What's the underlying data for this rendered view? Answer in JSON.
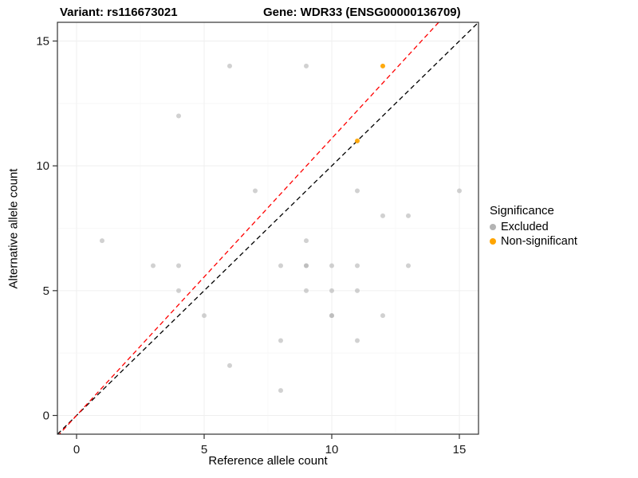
{
  "chart_data": {
    "type": "scatter",
    "title_left": "Variant: rs116673021",
    "title_right": "Gene: WDR33 (ENSG00000136709)",
    "xlabel": "Reference allele count",
    "ylabel": "Alternative allele count",
    "xlim": [
      -0.75,
      15.75
    ],
    "ylim": [
      -0.75,
      15.75
    ],
    "xticks": [
      0,
      5,
      10,
      15
    ],
    "yticks": [
      0,
      5,
      10,
      15
    ],
    "xminor": [
      2.5,
      7.5,
      12.5
    ],
    "yminor": [
      2.5,
      7.5,
      12.5
    ],
    "grid": true,
    "colors": {
      "panel_bg": "#ffffff",
      "panel_border": "#333333",
      "grid_major": "#efefef",
      "grid_minor": "#f8f8f8",
      "tick_text": "#1a1a1a",
      "gray_point": "#b3b3b3",
      "orange_point": "#ffa500",
      "identity_line": "#000000",
      "fit_line": "#ff0000"
    },
    "legend": {
      "title": "Significance",
      "position": "right",
      "items": [
        {
          "label": "Excluded",
          "color": "#b3b3b3"
        },
        {
          "label": "Non-significant",
          "color": "#ffa500"
        }
      ]
    },
    "series": [
      {
        "name": "Excluded",
        "color": "#b3b3b3",
        "opacity": 0.6,
        "points": [
          [
            1,
            7
          ],
          [
            3,
            6
          ],
          [
            4,
            12
          ],
          [
            4,
            6
          ],
          [
            4,
            5
          ],
          [
            5,
            4
          ],
          [
            6,
            14
          ],
          [
            6,
            2
          ],
          [
            7,
            9
          ],
          [
            8,
            6
          ],
          [
            8,
            3
          ],
          [
            8,
            1
          ],
          [
            9,
            14
          ],
          [
            9,
            7
          ],
          [
            9,
            6
          ],
          [
            9,
            6
          ],
          [
            9,
            5
          ],
          [
            10,
            6
          ],
          [
            10,
            5
          ],
          [
            10,
            4
          ],
          [
            10,
            4
          ],
          [
            11,
            9
          ],
          [
            11,
            6
          ],
          [
            11,
            5
          ],
          [
            11,
            3
          ],
          [
            12,
            8
          ],
          [
            12,
            4
          ],
          [
            13,
            8
          ],
          [
            13,
            6
          ],
          [
            15,
            9
          ]
        ]
      },
      {
        "name": "Non-significant",
        "color": "#ffa500",
        "opacity": 0.95,
        "points": [
          [
            11,
            11
          ],
          [
            12,
            14
          ]
        ]
      }
    ],
    "lines": [
      {
        "name": "identity",
        "color": "#000000",
        "slope": 1.0,
        "intercept": 0,
        "dash": "6 4"
      },
      {
        "name": "fit",
        "color": "#ff0000",
        "slope": 1.11,
        "intercept": 0,
        "dash": "6 4"
      }
    ]
  }
}
